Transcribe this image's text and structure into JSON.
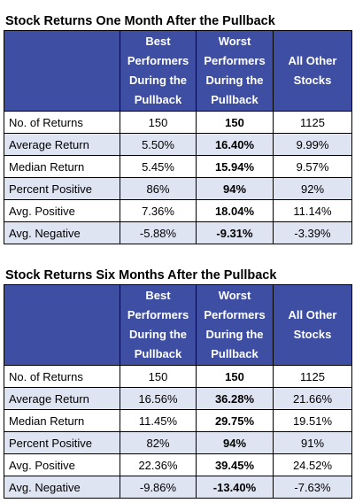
{
  "tables": [
    {
      "title": "Stock Returns One Month After the Pullback",
      "headers": [
        "",
        "Best Performers During the Pullback",
        "Worst Performers During the Pullback",
        "All Other Stocks"
      ],
      "rows": [
        {
          "label": "No. of Returns",
          "values": [
            "150",
            "150",
            "1125"
          ]
        },
        {
          "label": "Average Return",
          "values": [
            "5.50%",
            "16.40%",
            "9.99%"
          ]
        },
        {
          "label": "Median Return",
          "values": [
            "5.45%",
            "15.94%",
            "9.57%"
          ]
        },
        {
          "label": "Percent Positive",
          "values": [
            "86%",
            "94%",
            "92%"
          ]
        },
        {
          "label": "Avg. Positive",
          "values": [
            "7.36%",
            "18.04%",
            "11.14%"
          ]
        },
        {
          "label": "Avg. Negative",
          "values": [
            "-5.88%",
            "-9.31%",
            "-3.39%"
          ]
        }
      ]
    },
    {
      "title": "Stock Returns Six Months After the Pullback",
      "headers": [
        "",
        "Best Performers During the Pullback",
        "Worst Performers During the Pullback",
        "All Other Stocks"
      ],
      "rows": [
        {
          "label": "No. of Returns",
          "values": [
            "150",
            "150",
            "1125"
          ]
        },
        {
          "label": "Average Return",
          "values": [
            "16.56%",
            "36.28%",
            "21.66%"
          ]
        },
        {
          "label": "Median Return",
          "values": [
            "11.45%",
            "29.75%",
            "19.51%"
          ]
        },
        {
          "label": "Percent Positive",
          "values": [
            "82%",
            "94%",
            "91%"
          ]
        },
        {
          "label": "Avg. Positive",
          "values": [
            "22.36%",
            "39.45%",
            "24.52%"
          ]
        },
        {
          "label": "Avg. Negative",
          "values": [
            "-9.86%",
            "-13.40%",
            "-7.63%"
          ]
        }
      ]
    }
  ],
  "colors": {
    "header_bg": "#3e4fa3",
    "header_text": "#ffffff",
    "shaded_row": "#dfe4f2",
    "border": "#000000"
  }
}
